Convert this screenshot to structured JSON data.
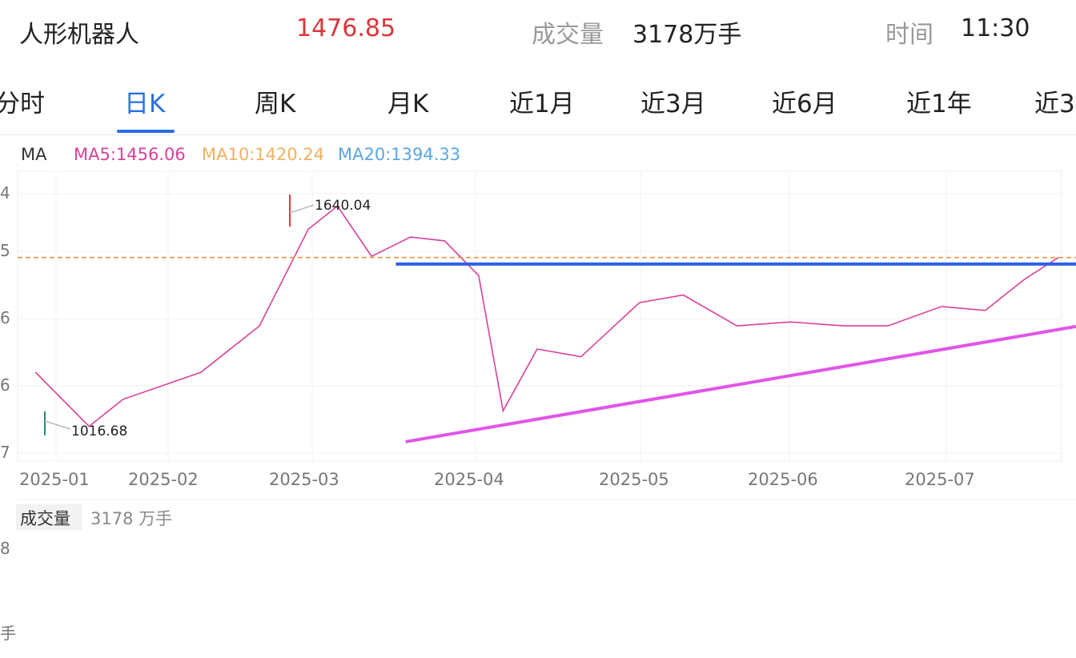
{
  "header": {
    "name": "人形机器人",
    "price": "1476.85",
    "volume_label": "成交量",
    "volume_value": "3178万手",
    "time_label": "时间",
    "time_value": "11:30"
  },
  "tabs": [
    {
      "label": "分时",
      "active": false
    },
    {
      "label": "日K",
      "active": true
    },
    {
      "label": "周K",
      "active": false
    },
    {
      "label": "月K",
      "active": false
    },
    {
      "label": "近1月",
      "active": false
    },
    {
      "label": "近3月",
      "active": false
    },
    {
      "label": "近6月",
      "active": false
    },
    {
      "label": "近1年",
      "active": false
    },
    {
      "label": "近3",
      "active": false
    }
  ],
  "colors": {
    "up": "#e0383e",
    "down": "#2e8b6a",
    "price_red": "#d9363e",
    "tab_active": "#2a6fe0",
    "ma5": "#d9409a",
    "ma10": "#f0b060",
    "ma20": "#5aa6e6",
    "ref_line": "#e8963a",
    "hline": "#2f5fe6",
    "trendline": "#e055e8"
  },
  "chart_data": {
    "type": "candlestick",
    "legend": {
      "ma_label": "MA",
      "ma5": "MA5:1456.06",
      "ma10": "MA10:1420.24",
      "ma20": "MA20:1394.33"
    },
    "y_tick_labels": [
      "4",
      "5",
      "6",
      "6",
      "7"
    ],
    "x_tick_labels": [
      "2025-01",
      "2025-02",
      "2025-03",
      "2025-04",
      "2025-05",
      "2025-06",
      "2025-07"
    ],
    "high_annotation": "1640.04",
    "low_annotation": "1016.68",
    "high": 1640.04,
    "low": 1016.68,
    "ylim": [
      950,
      1700
    ],
    "reference_price": 1476.85,
    "volume_label": "成交量",
    "volume_value": "3178 万手",
    "volume_y_ticks": [
      "8",
      "手"
    ],
    "drawn_lines": [
      {
        "type": "horizontal",
        "color": "blue",
        "level": 1460,
        "from_date": "2025-03-17",
        "to_date": "2025-07-31"
      },
      {
        "type": "trendline",
        "color": "magenta",
        "points": [
          [
            "2025-03-19",
            1000
          ],
          [
            "2025-07-31",
            1290
          ]
        ]
      }
    ]
  }
}
